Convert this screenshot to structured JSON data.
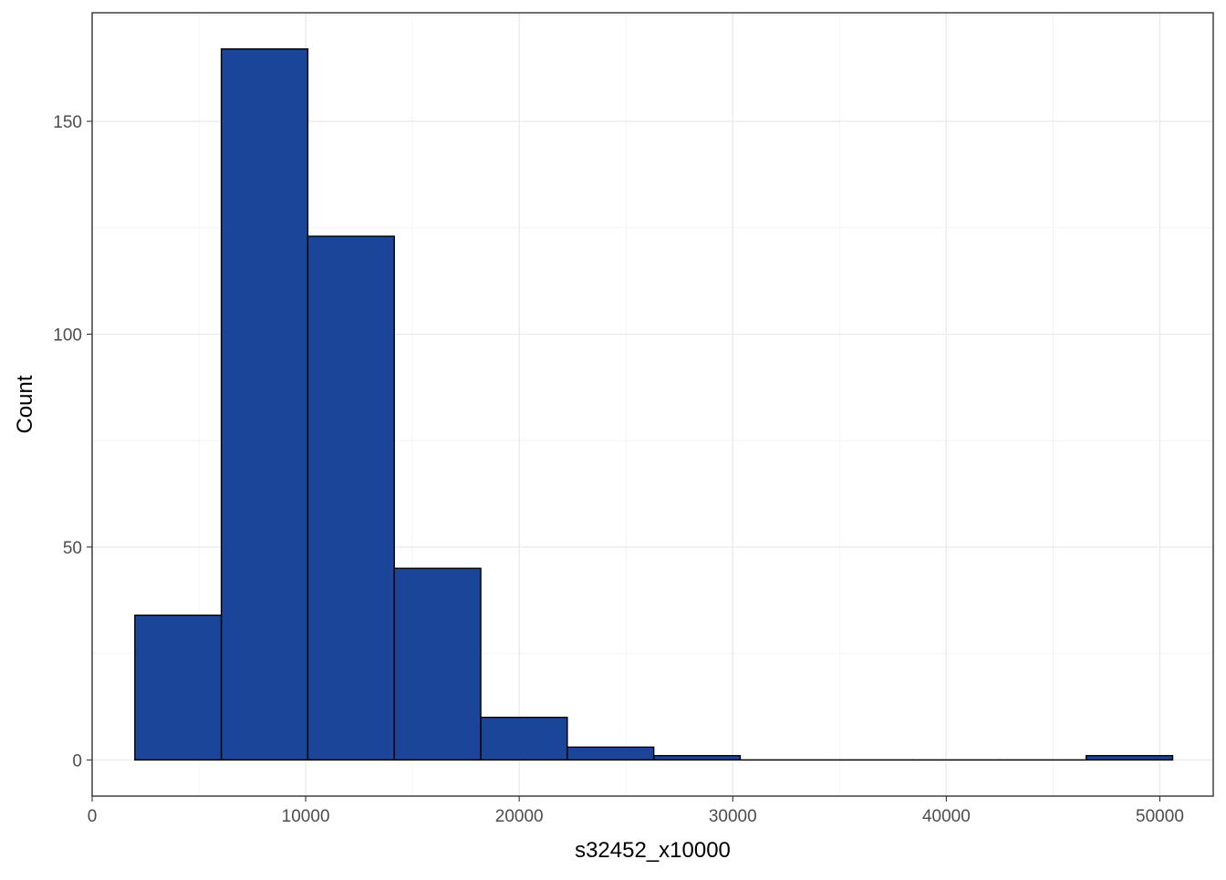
{
  "chart_data": {
    "type": "bar",
    "subtype": "histogram",
    "title": "",
    "xlabel": "s32452_x10000",
    "ylabel": "Count",
    "xlim": [
      0,
      52500
    ],
    "ylim": [
      -8.5,
      175.5
    ],
    "x_ticks": [
      0,
      10000,
      20000,
      30000,
      40000,
      50000
    ],
    "x_tick_labels": [
      "0",
      "10000",
      "20000",
      "30000",
      "40000",
      "50000"
    ],
    "y_ticks": [
      0,
      50,
      100,
      150
    ],
    "y_tick_labels": [
      "0",
      "50",
      "100",
      "150"
    ],
    "grid": true,
    "theme": "bw",
    "bar_fill": "#1a4599",
    "bar_outline": "#000000",
    "bin_width": 4050,
    "bins": [
      {
        "x0": 2000,
        "x1": 6050,
        "count": 34
      },
      {
        "x0": 6050,
        "x1": 10100,
        "count": 167
      },
      {
        "x0": 10100,
        "x1": 14150,
        "count": 123
      },
      {
        "x0": 14150,
        "x1": 18200,
        "count": 45
      },
      {
        "x0": 18200,
        "x1": 22250,
        "count": 10
      },
      {
        "x0": 22250,
        "x1": 26300,
        "count": 3
      },
      {
        "x0": 26300,
        "x1": 30350,
        "count": 1
      },
      {
        "x0": 30350,
        "x1": 34400,
        "count": 0
      },
      {
        "x0": 34400,
        "x1": 38450,
        "count": 0
      },
      {
        "x0": 38450,
        "x1": 42500,
        "count": 0
      },
      {
        "x0": 42500,
        "x1": 46550,
        "count": 0
      },
      {
        "x0": 46550,
        "x1": 50600,
        "count": 1
      }
    ]
  }
}
